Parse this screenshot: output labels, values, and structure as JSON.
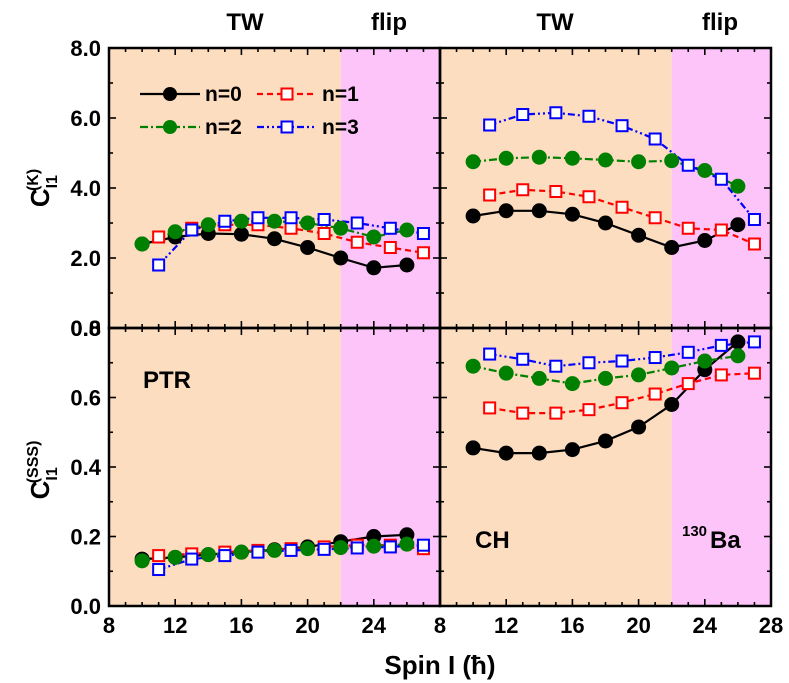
{
  "figure": {
    "top_labels": [
      "TW",
      "flip",
      "TW",
      "flip"
    ],
    "xlabel": "Spin I (ħ)",
    "ylabel_top": {
      "main": "C",
      "sub": "I1",
      "sup": "(K)"
    },
    "ylabel_bottom": {
      "main": "C",
      "sub": "I1",
      "sup": "(SSS)"
    },
    "panel_labels": {
      "ptr": "PTR",
      "ch": "CH",
      "nucleus": "Ba",
      "mass_number": "130"
    },
    "colors": {
      "tw_region": "#fcddbf",
      "flip_region": "#fdc4fa"
    }
  },
  "chart_data": [
    {
      "type": "line",
      "panel": "top-left",
      "xlim": [
        8,
        28
      ],
      "ylim": [
        0,
        8
      ],
      "xticks": [
        8,
        12,
        16,
        20,
        24
      ],
      "yticks": [
        "0.0",
        "2.0",
        "4.0",
        "6.0",
        "8.0"
      ],
      "regions": [
        {
          "label": "TW",
          "x": [
            8,
            22
          ]
        },
        {
          "label": "flip",
          "x": [
            22,
            28
          ]
        }
      ],
      "legend": {
        "position": "top-left"
      },
      "series": [
        {
          "name": "n=0",
          "color": "#000000",
          "marker": "filled-circle",
          "line": "solid",
          "x": [
            10,
            12,
            14,
            16,
            18,
            20,
            22,
            24,
            26
          ],
          "values": [
            2.4,
            2.6,
            2.7,
            2.68,
            2.55,
            2.3,
            2.0,
            1.72,
            1.8
          ]
        },
        {
          "name": "n=1",
          "color": "#ff0000",
          "marker": "open-square",
          "line": "dash",
          "x": [
            11,
            13,
            15,
            17,
            19,
            21,
            23,
            25,
            27
          ],
          "values": [
            2.6,
            2.85,
            2.95,
            2.95,
            2.85,
            2.7,
            2.45,
            2.3,
            2.15
          ]
        },
        {
          "name": "n=2",
          "color": "#008000",
          "marker": "filled-circle",
          "line": "dashdot",
          "x": [
            10,
            12,
            14,
            16,
            18,
            20,
            22,
            24,
            26
          ],
          "values": [
            2.4,
            2.75,
            2.95,
            3.05,
            3.05,
            3.0,
            2.85,
            2.6,
            2.8
          ]
        },
        {
          "name": "n=3",
          "color": "#0000ff",
          "marker": "open-square",
          "line": "dashdotdot",
          "x": [
            11,
            13,
            15,
            17,
            19,
            21,
            23,
            25,
            27
          ],
          "values": [
            1.8,
            2.8,
            3.05,
            3.15,
            3.15,
            3.1,
            3.0,
            2.85,
            2.7
          ]
        }
      ]
    },
    {
      "type": "line",
      "panel": "top-right",
      "xlim": [
        8,
        28
      ],
      "ylim": [
        0,
        8
      ],
      "xticks": [
        8,
        12,
        16,
        20,
        24,
        28
      ],
      "regions": [
        {
          "label": "TW",
          "x": [
            8,
            22
          ]
        },
        {
          "label": "flip",
          "x": [
            22,
            28
          ]
        }
      ],
      "series": [
        {
          "name": "n=0",
          "color": "#000000",
          "marker": "filled-circle",
          "line": "solid",
          "x": [
            10,
            12,
            14,
            16,
            18,
            20,
            22,
            24,
            26
          ],
          "values": [
            3.2,
            3.35,
            3.35,
            3.25,
            3.0,
            2.65,
            2.3,
            2.5,
            2.95
          ]
        },
        {
          "name": "n=1",
          "color": "#ff0000",
          "marker": "open-square",
          "line": "dash",
          "x": [
            11,
            13,
            15,
            17,
            19,
            21,
            23,
            25,
            27
          ],
          "values": [
            3.8,
            3.95,
            3.9,
            3.75,
            3.45,
            3.15,
            2.85,
            2.8,
            2.4
          ]
        },
        {
          "name": "n=2",
          "color": "#008000",
          "marker": "filled-circle",
          "line": "dashdot",
          "x": [
            10,
            12,
            14,
            16,
            18,
            20,
            22,
            24,
            26
          ],
          "values": [
            4.75,
            4.85,
            4.88,
            4.85,
            4.8,
            4.75,
            4.78,
            4.5,
            4.05
          ]
        },
        {
          "name": "n=3",
          "color": "#0000ff",
          "marker": "open-square",
          "line": "dashdotdot",
          "x": [
            11,
            13,
            15,
            17,
            19,
            21,
            23,
            25,
            27
          ],
          "values": [
            5.8,
            6.1,
            6.15,
            6.05,
            5.78,
            5.4,
            4.65,
            4.25,
            3.1
          ]
        }
      ]
    },
    {
      "type": "line",
      "panel": "bottom-left",
      "xlim": [
        8,
        28
      ],
      "ylim": [
        0,
        0.8
      ],
      "xticks": [
        8,
        12,
        16,
        20,
        24
      ],
      "yticks": [
        "0.0",
        "0.2",
        "0.4",
        "0.6",
        "0.8"
      ],
      "regions": [
        {
          "label": "TW",
          "x": [
            8,
            22
          ]
        },
        {
          "label": "flip",
          "x": [
            22,
            28
          ]
        }
      ],
      "series": [
        {
          "name": "n=0",
          "color": "#000000",
          "marker": "filled-circle",
          "line": "solid",
          "x": [
            10,
            12,
            14,
            16,
            18,
            20,
            22,
            24,
            26
          ],
          "values": [
            0.135,
            0.14,
            0.148,
            0.155,
            0.162,
            0.17,
            0.185,
            0.2,
            0.205
          ]
        },
        {
          "name": "n=1",
          "color": "#ff0000",
          "marker": "open-square",
          "line": "dash",
          "x": [
            11,
            13,
            15,
            17,
            19,
            21,
            23,
            25,
            27
          ],
          "values": [
            0.145,
            0.15,
            0.155,
            0.16,
            0.165,
            0.17,
            0.175,
            0.175,
            0.165
          ]
        },
        {
          "name": "n=2",
          "color": "#008000",
          "marker": "filled-circle",
          "line": "dashdot",
          "x": [
            10,
            12,
            14,
            16,
            18,
            20,
            22,
            24,
            26
          ],
          "values": [
            0.13,
            0.14,
            0.148,
            0.155,
            0.16,
            0.165,
            0.168,
            0.172,
            0.178
          ]
        },
        {
          "name": "n=3",
          "color": "#0000ff",
          "marker": "open-square",
          "line": "dashdotdot",
          "x": [
            11,
            13,
            15,
            17,
            19,
            21,
            23,
            25,
            27
          ],
          "values": [
            0.105,
            0.135,
            0.145,
            0.155,
            0.16,
            0.163,
            0.167,
            0.17,
            0.175
          ]
        }
      ]
    },
    {
      "type": "line",
      "panel": "bottom-right",
      "xlim": [
        8,
        28
      ],
      "ylim": [
        0,
        0.8
      ],
      "xticks": [
        8,
        12,
        16,
        20,
        24,
        28
      ],
      "regions": [
        {
          "label": "TW",
          "x": [
            8,
            22
          ]
        },
        {
          "label": "flip",
          "x": [
            22,
            28
          ]
        }
      ],
      "series": [
        {
          "name": "n=0",
          "color": "#000000",
          "marker": "filled-circle",
          "line": "solid",
          "x": [
            10,
            12,
            14,
            16,
            18,
            20,
            22,
            24,
            26
          ],
          "values": [
            0.455,
            0.44,
            0.44,
            0.45,
            0.475,
            0.515,
            0.58,
            0.68,
            0.76
          ]
        },
        {
          "name": "n=1",
          "color": "#ff0000",
          "marker": "open-square",
          "line": "dash",
          "x": [
            11,
            13,
            15,
            17,
            19,
            21,
            23,
            25,
            27
          ],
          "values": [
            0.57,
            0.555,
            0.555,
            0.565,
            0.585,
            0.61,
            0.64,
            0.665,
            0.67
          ]
        },
        {
          "name": "n=2",
          "color": "#008000",
          "marker": "filled-circle",
          "line": "dashdot",
          "x": [
            10,
            12,
            14,
            16,
            18,
            20,
            22,
            24,
            26
          ],
          "values": [
            0.69,
            0.67,
            0.655,
            0.64,
            0.655,
            0.665,
            0.685,
            0.705,
            0.72
          ]
        },
        {
          "name": "n=3",
          "color": "#0000ff",
          "marker": "open-square",
          "line": "dashdotdot",
          "x": [
            11,
            13,
            15,
            17,
            19,
            21,
            23,
            25,
            27
          ],
          "values": [
            0.725,
            0.71,
            0.69,
            0.7,
            0.705,
            0.715,
            0.73,
            0.75,
            0.76
          ]
        }
      ]
    }
  ]
}
